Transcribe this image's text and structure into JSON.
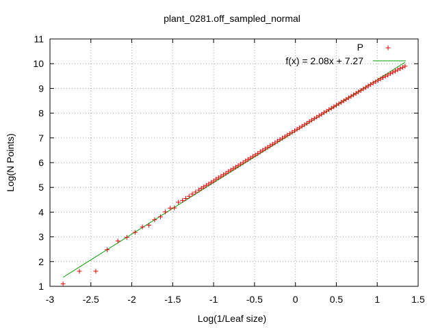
{
  "chart_data": {
    "type": "scatter",
    "title": "plant_0281.off_sampled_normal",
    "xlabel": "Log(1/Leaf size)",
    "ylabel": "Log(N Points)",
    "xlim": [
      -3,
      1.5
    ],
    "ylim": [
      1,
      11
    ],
    "xticks": [
      -3,
      -2.5,
      -2,
      -1.5,
      -1,
      -0.5,
      0,
      0.5,
      1,
      1.5
    ],
    "yticks": [
      1,
      2,
      3,
      4,
      5,
      6,
      7,
      8,
      9,
      10,
      11
    ],
    "grid": true,
    "legend_position": "top-right",
    "series": [
      {
        "name": "P",
        "color": "#e00000",
        "marker": "plus",
        "x": [
          -2.84,
          -2.64,
          -2.44,
          -2.3,
          -2.17,
          -2.06,
          -1.96,
          -1.87,
          -1.79,
          -1.72,
          -1.65,
          -1.59,
          -1.53,
          -1.48,
          -1.43,
          -1.38,
          -1.34,
          -1.3,
          -1.26,
          -1.22,
          -1.18,
          -1.15,
          -1.12,
          -1.09,
          -1.06,
          -1.03,
          -1.0,
          -0.97,
          -0.94,
          -0.91,
          -0.88,
          -0.85,
          -0.82,
          -0.79,
          -0.76,
          -0.73,
          -0.7,
          -0.67,
          -0.64,
          -0.61,
          -0.58,
          -0.55,
          -0.52,
          -0.49,
          -0.46,
          -0.43,
          -0.4,
          -0.37,
          -0.34,
          -0.31,
          -0.28,
          -0.25,
          -0.22,
          -0.19,
          -0.16,
          -0.13,
          -0.1,
          -0.07,
          -0.04,
          -0.01,
          0.02,
          0.05,
          0.08,
          0.11,
          0.14,
          0.17,
          0.2,
          0.23,
          0.26,
          0.29,
          0.32,
          0.35,
          0.38,
          0.41,
          0.44,
          0.47,
          0.5,
          0.53,
          0.56,
          0.59,
          0.62,
          0.65,
          0.68,
          0.71,
          0.74,
          0.77,
          0.8,
          0.83,
          0.86,
          0.89,
          0.92,
          0.95,
          0.98,
          1.01,
          1.04,
          1.07,
          1.1,
          1.13,
          1.16,
          1.19,
          1.22,
          1.25,
          1.28,
          1.31,
          1.34
        ],
        "y": [
          1.1,
          1.61,
          1.61,
          2.48,
          2.83,
          2.98,
          3.18,
          3.4,
          3.47,
          3.69,
          3.81,
          4.01,
          4.16,
          4.17,
          4.4,
          4.47,
          4.55,
          4.64,
          4.73,
          4.81,
          4.89,
          4.96,
          5.02,
          5.08,
          5.14,
          5.2,
          5.26,
          5.33,
          5.39,
          5.45,
          5.51,
          5.57,
          5.64,
          5.7,
          5.76,
          5.82,
          5.88,
          5.94,
          6.0,
          6.07,
          6.13,
          6.19,
          6.25,
          6.31,
          6.37,
          6.44,
          6.5,
          6.56,
          6.62,
          6.68,
          6.74,
          6.8,
          6.87,
          6.93,
          6.99,
          7.05,
          7.11,
          7.17,
          7.23,
          7.29,
          7.35,
          7.41,
          7.47,
          7.53,
          7.59,
          7.66,
          7.72,
          7.78,
          7.84,
          7.9,
          7.96,
          8.02,
          8.08,
          8.14,
          8.2,
          8.26,
          8.32,
          8.38,
          8.44,
          8.5,
          8.56,
          8.62,
          8.68,
          8.74,
          8.8,
          8.86,
          8.92,
          8.98,
          9.04,
          9.1,
          9.16,
          9.22,
          9.27,
          9.33,
          9.38,
          9.44,
          9.49,
          9.54,
          9.6,
          9.65,
          9.7,
          9.75,
          9.8,
          9.85,
          9.9
        ]
      },
      {
        "name": "f(x) = 2.08x + 7.27",
        "color": "#00a000",
        "type": "line",
        "slope": 2.08,
        "intercept": 7.27,
        "x_range": [
          -2.84,
          1.34
        ]
      }
    ]
  }
}
